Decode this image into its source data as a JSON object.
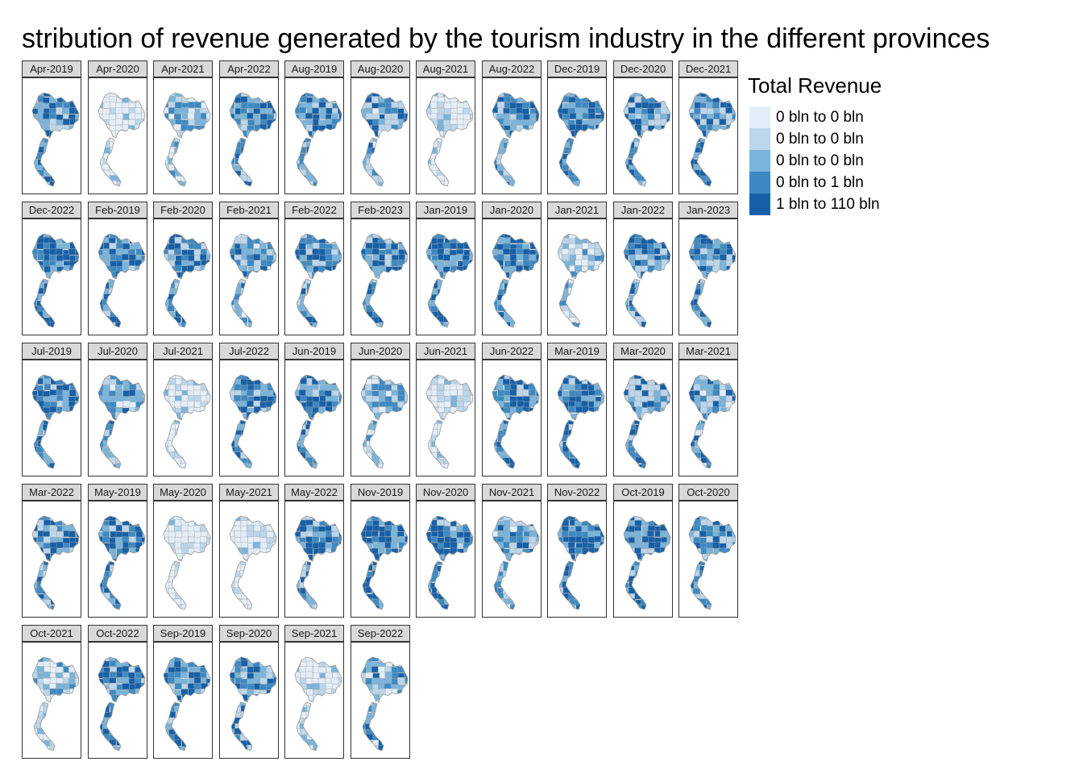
{
  "title": "stribution of revenue generated by the tourism industry in the different provinces",
  "legend": {
    "title": "Total Revenue",
    "items": [
      {
        "label": "0 bln to 0 bln",
        "color": "#e3eef8"
      },
      {
        "label": "0 bln to 0 bln",
        "color": "#bcd6eb"
      },
      {
        "label": "0 bln to 0 bln",
        "color": "#79b4da"
      },
      {
        "label": "0 bln to 1 bln",
        "color": "#3c89c3"
      },
      {
        "label": "1 bln to 110 bln",
        "color": "#1660a8"
      }
    ]
  },
  "panels": [
    {
      "label": "Apr-2019",
      "level": 0.7
    },
    {
      "label": "Apr-2020",
      "level": 0.05
    },
    {
      "label": "Apr-2021",
      "level": 0.4
    },
    {
      "label": "Apr-2022",
      "level": 0.7
    },
    {
      "label": "Aug-2019",
      "level": 0.7
    },
    {
      "label": "Aug-2020",
      "level": 0.55
    },
    {
      "label": "Aug-2021",
      "level": 0.08
    },
    {
      "label": "Aug-2022",
      "level": 0.7
    },
    {
      "label": "Dec-2019",
      "level": 0.8
    },
    {
      "label": "Dec-2020",
      "level": 0.65
    },
    {
      "label": "Dec-2021",
      "level": 0.65
    },
    {
      "label": "Dec-2022",
      "level": 0.8
    },
    {
      "label": "Feb-2019",
      "level": 0.7
    },
    {
      "label": "Feb-2020",
      "level": 0.7
    },
    {
      "label": "Feb-2021",
      "level": 0.55
    },
    {
      "label": "Feb-2022",
      "level": 0.65
    },
    {
      "label": "Feb-2023",
      "level": 0.7
    },
    {
      "label": "Jan-2019",
      "level": 0.8
    },
    {
      "label": "Jan-2020",
      "level": 0.8
    },
    {
      "label": "Jan-2021",
      "level": 0.4
    },
    {
      "label": "Jan-2022",
      "level": 0.65
    },
    {
      "label": "Jan-2023",
      "level": 0.7
    },
    {
      "label": "Jul-2019",
      "level": 0.75
    },
    {
      "label": "Jul-2020",
      "level": 0.5
    },
    {
      "label": "Jul-2021",
      "level": 0.1
    },
    {
      "label": "Jul-2022",
      "level": 0.7
    },
    {
      "label": "Jun-2019",
      "level": 0.7
    },
    {
      "label": "Jun-2020",
      "level": 0.35
    },
    {
      "label": "Jun-2021",
      "level": 0.12
    },
    {
      "label": "Jun-2022",
      "level": 0.7
    },
    {
      "label": "Mar-2019",
      "level": 0.75
    },
    {
      "label": "Mar-2020",
      "level": 0.6
    },
    {
      "label": "Mar-2021",
      "level": 0.5
    },
    {
      "label": "Mar-2022",
      "level": 0.65
    },
    {
      "label": "May-2019",
      "level": 0.75
    },
    {
      "label": "May-2020",
      "level": 0.05
    },
    {
      "label": "May-2021",
      "level": 0.1
    },
    {
      "label": "May-2022",
      "level": 0.7
    },
    {
      "label": "Nov-2019",
      "level": 0.8
    },
    {
      "label": "Nov-2020",
      "level": 0.7
    },
    {
      "label": "Nov-2021",
      "level": 0.55
    },
    {
      "label": "Nov-2022",
      "level": 0.75
    },
    {
      "label": "Oct-2019",
      "level": 0.75
    },
    {
      "label": "Oct-2020",
      "level": 0.6
    },
    {
      "label": "Oct-2021",
      "level": 0.3
    },
    {
      "label": "Oct-2022",
      "level": 0.7
    },
    {
      "label": "Sep-2019",
      "level": 0.7
    },
    {
      "label": "Sep-2020",
      "level": 0.6
    },
    {
      "label": "Sep-2021",
      "level": 0.15
    },
    {
      "label": "Sep-2022",
      "level": 0.55
    }
  ]
}
